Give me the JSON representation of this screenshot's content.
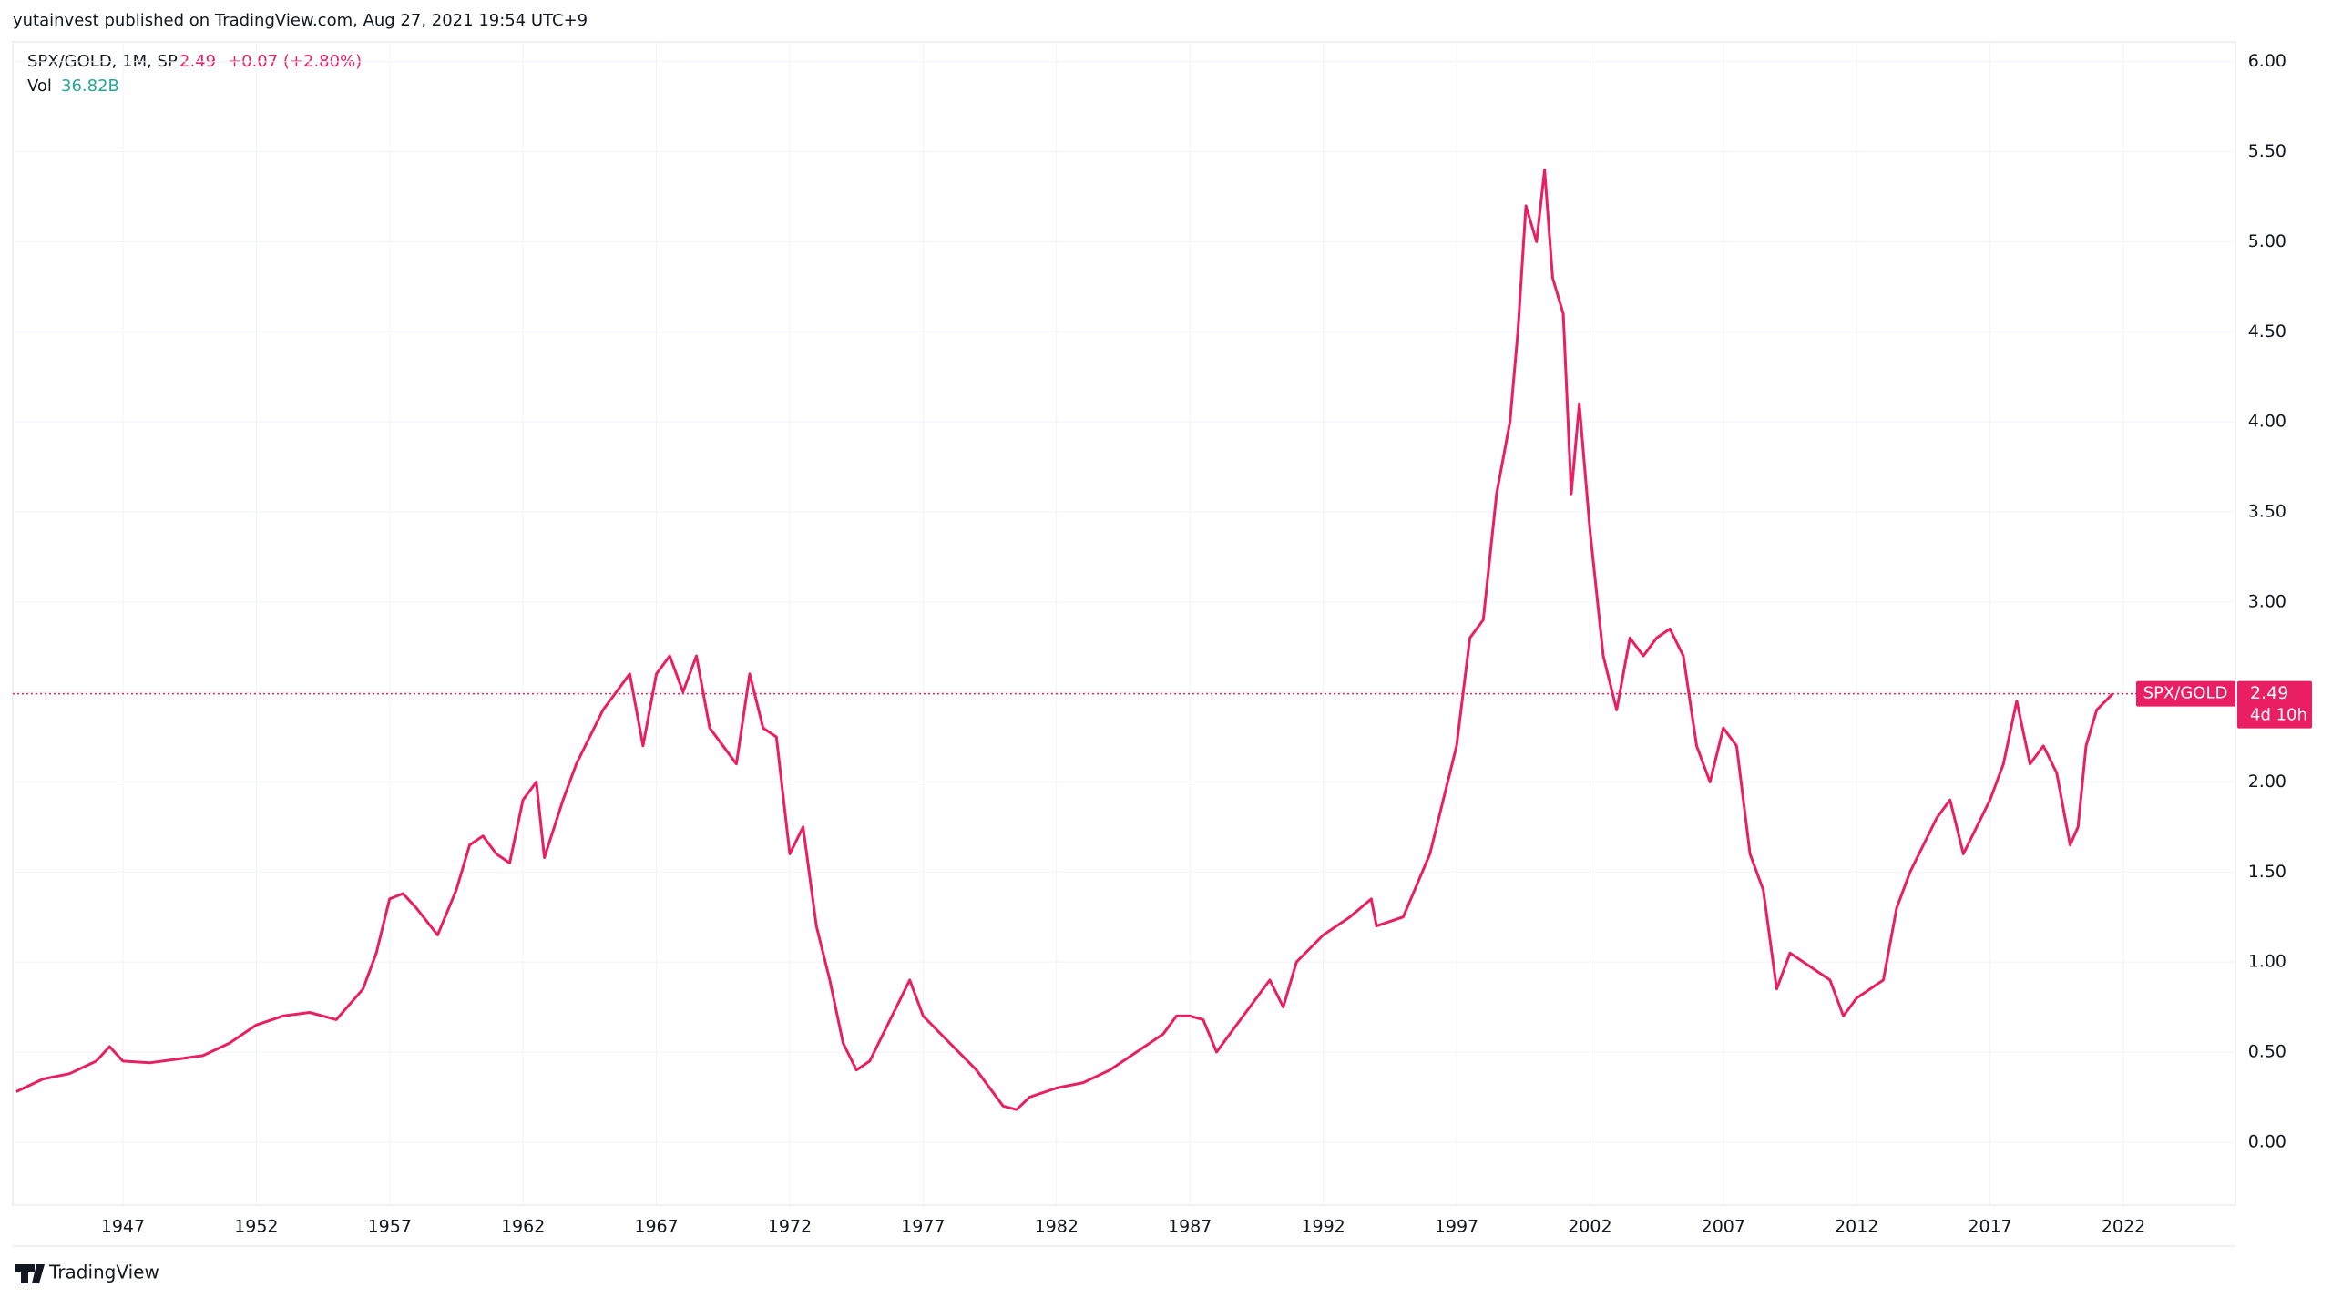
{
  "header": "yutainvest published on TradingView.com, Aug 27, 2021 19:54 UTC+9",
  "footer": "TradingView",
  "chart_data": {
    "type": "line",
    "symbol": "SPX/GOLD, 1M, SP",
    "last_value": 2.49,
    "change_label": "+0.07 (+2.80%)",
    "volume_name": "Vol",
    "volume_label": "36.82B",
    "last_label": "SPX/GOLD",
    "countdown": "4d 10h",
    "grid": true,
    "color": "#e91e63",
    "xlim": [
      1942.87,
      2026.2
    ],
    "xticks": [
      1947,
      1952,
      1957,
      1962,
      1967,
      1972,
      1977,
      1982,
      1987,
      1992,
      1997,
      2002,
      2007,
      2012,
      2017,
      2022
    ],
    "ylim": [
      -0.35,
      6.11
    ],
    "yticks": [
      {
        "value": 0,
        "label": "0.00"
      },
      {
        "value": 0.5,
        "label": "0.50"
      },
      {
        "value": 1,
        "label": "1.00"
      },
      {
        "value": 1.5,
        "label": "1.50"
      },
      {
        "value": 2,
        "label": "2.00"
      },
      {
        "value": 2.5,
        "label": "2.50"
      },
      {
        "value": 3,
        "label": "3.00"
      },
      {
        "value": 3.5,
        "label": "3.50"
      },
      {
        "value": 4,
        "label": "4.00"
      },
      {
        "value": 4.5,
        "label": "4.50"
      },
      {
        "value": 5,
        "label": "5.00"
      },
      {
        "value": 5.5,
        "label": "5.50"
      },
      {
        "value": 6,
        "label": "6.00"
      }
    ],
    "x": [
      1943,
      1944,
      1945,
      1946,
      1946.5,
      1947,
      1948,
      1949,
      1950,
      1951,
      1952,
      1953,
      1954,
      1955,
      1956,
      1956.5,
      1957,
      1957.5,
      1958,
      1958.8,
      1959.5,
      1960,
      1960.5,
      1961,
      1961.5,
      1962,
      1962.5,
      1962.8,
      1963.5,
      1964,
      1965,
      1966,
      1966.5,
      1967,
      1967.5,
      1968,
      1968.5,
      1969,
      1970,
      1970.5,
      1971,
      1971.5,
      1972,
      1972.5,
      1973,
      1973.5,
      1974,
      1974.5,
      1975,
      1975.5,
      1976,
      1976.5,
      1977,
      1978,
      1979,
      1980,
      1980.5,
      1981,
      1982,
      1983,
      1984,
      1985,
      1986,
      1986.5,
      1987,
      1987.5,
      1988,
      1989,
      1990,
      1990.5,
      1991,
      1992,
      1993,
      1993.8,
      1994,
      1995,
      1996,
      1997,
      1997.5,
      1998,
      1998.5,
      1999,
      1999.3,
      1999.6,
      2000,
      2000.3,
      2000.6,
      2001,
      2001.3,
      2001.6,
      2002,
      2002.5,
      2003,
      2003.5,
      2004,
      2004.5,
      2005,
      2005.5,
      2006,
      2006.5,
      2007,
      2007.5,
      2008,
      2008.5,
      2009,
      2009.5,
      2010,
      2011,
      2011.5,
      2012,
      2013,
      2013.5,
      2014,
      2015,
      2015.5,
      2016,
      2017,
      2017.5,
      2018,
      2018.5,
      2019,
      2019.5,
      2020,
      2020.3,
      2020.6,
      2021,
      2021.6
    ],
    "values": [
      0.28,
      0.35,
      0.38,
      0.45,
      0.53,
      0.45,
      0.44,
      0.46,
      0.48,
      0.55,
      0.65,
      0.7,
      0.72,
      0.68,
      0.85,
      1.05,
      1.35,
      1.38,
      1.3,
      1.15,
      1.4,
      1.65,
      1.7,
      1.6,
      1.55,
      1.9,
      2.0,
      1.58,
      1.9,
      2.1,
      2.4,
      2.6,
      2.2,
      2.6,
      2.7,
      2.5,
      2.7,
      2.3,
      2.1,
      2.6,
      2.3,
      2.25,
      1.6,
      1.75,
      1.2,
      0.9,
      0.55,
      0.4,
      0.45,
      0.6,
      0.75,
      0.9,
      0.7,
      0.55,
      0.4,
      0.2,
      0.18,
      0.25,
      0.3,
      0.33,
      0.4,
      0.5,
      0.6,
      0.7,
      0.7,
      0.68,
      0.5,
      0.7,
      0.9,
      0.75,
      1.0,
      1.15,
      1.25,
      1.35,
      1.2,
      1.25,
      1.6,
      2.2,
      2.8,
      2.9,
      3.6,
      4.0,
      4.5,
      5.2,
      5.0,
      5.4,
      4.8,
      4.6,
      3.6,
      4.1,
      3.4,
      2.7,
      2.4,
      2.8,
      2.7,
      2.8,
      2.85,
      2.7,
      2.2,
      2.0,
      2.3,
      2.2,
      1.6,
      1.4,
      0.85,
      1.05,
      1.0,
      0.9,
      0.7,
      0.8,
      0.9,
      1.3,
      1.5,
      1.8,
      1.9,
      1.6,
      1.9,
      2.1,
      2.45,
      2.1,
      2.2,
      2.05,
      1.65,
      1.75,
      2.2,
      2.4,
      2.49
    ]
  }
}
